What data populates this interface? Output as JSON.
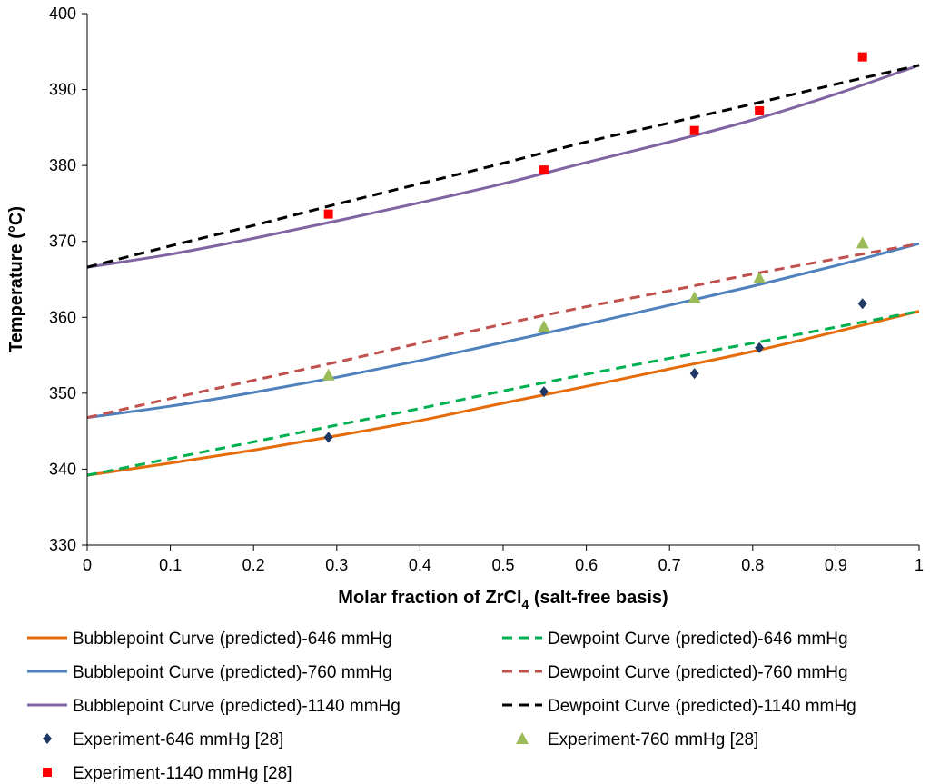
{
  "chart_data": {
    "type": "line",
    "xlabel_prefix": "Molar fraction of ZrCl",
    "xlabel_sub": "4",
    "xlabel_suffix": " (salt-free basis)",
    "ylabel": "Temperature (°C)",
    "xlim": [
      0,
      1
    ],
    "ylim": [
      330,
      400
    ],
    "x_ticks": [
      "0",
      "0.1",
      "0.2",
      "0.3",
      "0.4",
      "0.5",
      "0.6",
      "0.7",
      "0.8",
      "0.9",
      "1"
    ],
    "y_ticks": [
      "330",
      "340",
      "350",
      "360",
      "370",
      "380",
      "390",
      "400"
    ],
    "grid": false,
    "legend_position": "bottom",
    "series": [
      {
        "name": "Bubblepoint Curve (predicted)-646 mmHg",
        "kind": "line",
        "style": "solid",
        "color": "#E46C0A",
        "x": [
          0,
          0.1,
          0.2,
          0.3,
          0.4,
          0.5,
          0.6,
          0.7,
          0.8,
          0.9,
          1.0
        ],
        "y": [
          339.2,
          340.8,
          342.5,
          344.4,
          346.4,
          348.7,
          350.9,
          353.2,
          355.5,
          358.1,
          360.8
        ]
      },
      {
        "name": "Dewpoint Curve (predicted)-646 mmHg",
        "kind": "line",
        "style": "dashed",
        "color": "#00B050",
        "x": [
          0,
          0.1,
          0.2,
          0.3,
          0.4,
          0.5,
          0.6,
          0.7,
          0.8,
          0.9,
          1.0
        ],
        "y": [
          339.2,
          341.4,
          343.6,
          345.8,
          348.0,
          350.3,
          352.5,
          354.6,
          356.6,
          358.7,
          360.8
        ]
      },
      {
        "name": "Bubblepoint Curve (predicted)-760 mmHg",
        "kind": "line",
        "style": "solid",
        "color": "#4F81BD",
        "x": [
          0,
          0.1,
          0.2,
          0.3,
          0.4,
          0.5,
          0.6,
          0.7,
          0.8,
          0.9,
          1.0
        ],
        "y": [
          346.8,
          348.3,
          350.1,
          352.1,
          354.3,
          356.7,
          359.1,
          361.6,
          364.1,
          366.8,
          369.7
        ]
      },
      {
        "name": "Dewpoint Curve (predicted)-760 mmHg",
        "kind": "line",
        "style": "dashed",
        "color": "#C0504D",
        "x": [
          0,
          0.1,
          0.2,
          0.3,
          0.4,
          0.5,
          0.6,
          0.7,
          0.8,
          0.9,
          1.0
        ],
        "y": [
          346.8,
          349.3,
          351.7,
          354.1,
          356.6,
          359.1,
          361.4,
          363.5,
          365.7,
          367.7,
          369.7
        ]
      },
      {
        "name": "Bubblepoint Curve (predicted)-1140 mmHg",
        "kind": "line",
        "style": "solid",
        "color": "#8064A2",
        "x": [
          0,
          0.1,
          0.2,
          0.3,
          0.4,
          0.5,
          0.6,
          0.7,
          0.8,
          0.9,
          1.0
        ],
        "y": [
          366.6,
          368.3,
          370.4,
          372.7,
          375.1,
          377.6,
          380.4,
          383.1,
          386.0,
          389.4,
          393.2
        ]
      },
      {
        "name": "Dewpoint Curve (predicted)-1140 mmHg",
        "kind": "line",
        "style": "dashed",
        "color": "#000000",
        "x": [
          0,
          0.1,
          0.2,
          0.3,
          0.4,
          0.5,
          0.6,
          0.7,
          0.8,
          0.9,
          1.0
        ],
        "y": [
          366.6,
          369.4,
          372.1,
          374.9,
          377.6,
          380.3,
          383.1,
          385.6,
          388.1,
          390.7,
          393.2
        ]
      },
      {
        "name": "Experiment-646 mmHg [28]",
        "kind": "scatter",
        "marker": "diamond",
        "color": "#1F3864",
        "x": [
          0.29,
          0.549,
          0.73,
          0.808,
          0.932
        ],
        "y": [
          344.2,
          350.2,
          352.6,
          356.0,
          361.8
        ]
      },
      {
        "name": "Experiment-760 mmHg [28]",
        "kind": "scatter",
        "marker": "triangle",
        "color": "#9BBB59",
        "x": [
          0.29,
          0.549,
          0.73,
          0.808,
          0.932
        ],
        "y": [
          352.4,
          358.8,
          362.6,
          365.2,
          369.8
        ]
      },
      {
        "name": "Experiment-1140 mmHg [28]",
        "kind": "scatter",
        "marker": "square",
        "color": "#FF0000",
        "x": [
          0.29,
          0.549,
          0.73,
          0.808,
          0.932
        ],
        "y": [
          373.6,
          379.4,
          384.6,
          387.2,
          394.3
        ]
      }
    ]
  }
}
